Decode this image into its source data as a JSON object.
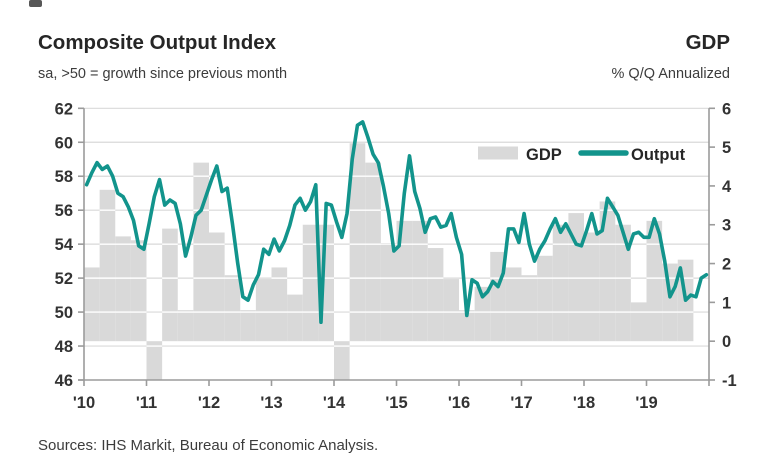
{
  "header": {
    "title_left": "Composite Output Index",
    "title_right": "GDP",
    "subtitle_left": "sa, >50 = growth since previous month",
    "subtitle_right": "% Q/Q Annualized"
  },
  "legend": {
    "gdp_label": "GDP",
    "output_label": "Output"
  },
  "source": "Sources: IHS Markit, Bureau of Economic Analysis.",
  "colors": {
    "teal": "#12948C",
    "bar": "#D9D9D9",
    "grid": "#D9D9D9",
    "white_grid": "#FFFFFF",
    "axis": "#9B9B9B",
    "tick_text": "#333333"
  },
  "chart_data": {
    "type": "line+bar",
    "title": "Composite Output Index vs GDP",
    "left_axis": {
      "label": "sa, >50 = growth since previous month",
      "range": [
        46,
        62
      ],
      "ticks": [
        46,
        48,
        50,
        52,
        54,
        56,
        58,
        60,
        62
      ]
    },
    "right_axis": {
      "label": "% Q/Q Annualized",
      "range": [
        -1,
        6
      ],
      "ticks": [
        -1,
        0,
        1,
        2,
        3,
        4,
        5,
        6
      ]
    },
    "x_axis": {
      "year_labels": [
        "'10",
        "'11",
        "'12",
        "'13",
        "'14",
        "'15",
        "'16",
        "'17",
        "'18",
        "'19"
      ],
      "range_years": [
        2010,
        2020
      ]
    },
    "grid": "on",
    "legend_position": "top-right-inside",
    "series": [
      {
        "name": "GDP",
        "type": "bar",
        "axis": "right",
        "unit": "% q/q annualized",
        "start": "2010-Q1",
        "quarters": [
          "2010Q1",
          "2010Q2",
          "2010Q3",
          "2010Q4",
          "2011Q1",
          "2011Q2",
          "2011Q3",
          "2011Q4",
          "2012Q1",
          "2012Q2",
          "2012Q3",
          "2012Q4",
          "2013Q1",
          "2013Q2",
          "2013Q3",
          "2013Q4",
          "2014Q1",
          "2014Q2",
          "2014Q3",
          "2014Q4",
          "2015Q1",
          "2015Q2",
          "2015Q3",
          "2015Q4",
          "2016Q1",
          "2016Q2",
          "2016Q3",
          "2016Q4",
          "2017Q1",
          "2017Q2",
          "2017Q3",
          "2017Q4",
          "2018Q1",
          "2018Q2",
          "2018Q3",
          "2018Q4",
          "2019Q1",
          "2019Q2",
          "2019Q3"
        ],
        "values": [
          1.9,
          3.9,
          2.7,
          2.6,
          -1.0,
          2.9,
          0.8,
          4.6,
          2.8,
          1.7,
          0.8,
          1.6,
          1.9,
          1.2,
          3.0,
          3.0,
          -1.0,
          5.1,
          4.6,
          2.5,
          3.1,
          3.1,
          2.4,
          1.6,
          0.8,
          1.4,
          2.3,
          1.9,
          1.7,
          2.2,
          3.0,
          3.3,
          2.8,
          3.6,
          3.0,
          1.0,
          3.1,
          2.0,
          2.1
        ]
      },
      {
        "name": "Output",
        "type": "line",
        "axis": "left",
        "unit": "index, sa",
        "start_month": "2010-01",
        "values": [
          57.5,
          58.2,
          58.8,
          58.4,
          58.6,
          58.0,
          57.0,
          56.8,
          56.2,
          55.4,
          53.9,
          53.7,
          55.2,
          56.8,
          57.8,
          56.3,
          56.6,
          56.4,
          55.2,
          53.3,
          54.4,
          55.7,
          56.0,
          56.9,
          57.8,
          58.6,
          57.1,
          57.3,
          55.2,
          52.9,
          50.9,
          50.7,
          51.6,
          52.2,
          53.7,
          53.4,
          54.3,
          53.6,
          54.2,
          55.1,
          56.3,
          56.7,
          56.0,
          56.5,
          57.5,
          49.4,
          56.4,
          56.3,
          55.3,
          54.4,
          55.8,
          59.0,
          61.0,
          61.2,
          60.3,
          59.3,
          58.8,
          57.4,
          55.8,
          53.6,
          53.9,
          57.0,
          59.2,
          57.1,
          56.1,
          54.7,
          55.5,
          55.6,
          55.0,
          55.1,
          55.8,
          54.4,
          53.4,
          49.8,
          51.9,
          51.7,
          50.9,
          51.2,
          51.8,
          51.5,
          52.3,
          54.9,
          54.9,
          54.1,
          55.8,
          54.0,
          53.0,
          53.7,
          54.2,
          54.9,
          55.5,
          54.7,
          55.2,
          54.6,
          54.0,
          53.9,
          54.8,
          55.8,
          54.6,
          54.8,
          56.7,
          56.2,
          55.7,
          54.7,
          53.7,
          54.6,
          54.7,
          54.4,
          54.4,
          55.5,
          54.6,
          53.0,
          50.9,
          51.5,
          52.6,
          50.7,
          51.0,
          50.9,
          52.0,
          52.2
        ]
      }
    ]
  }
}
